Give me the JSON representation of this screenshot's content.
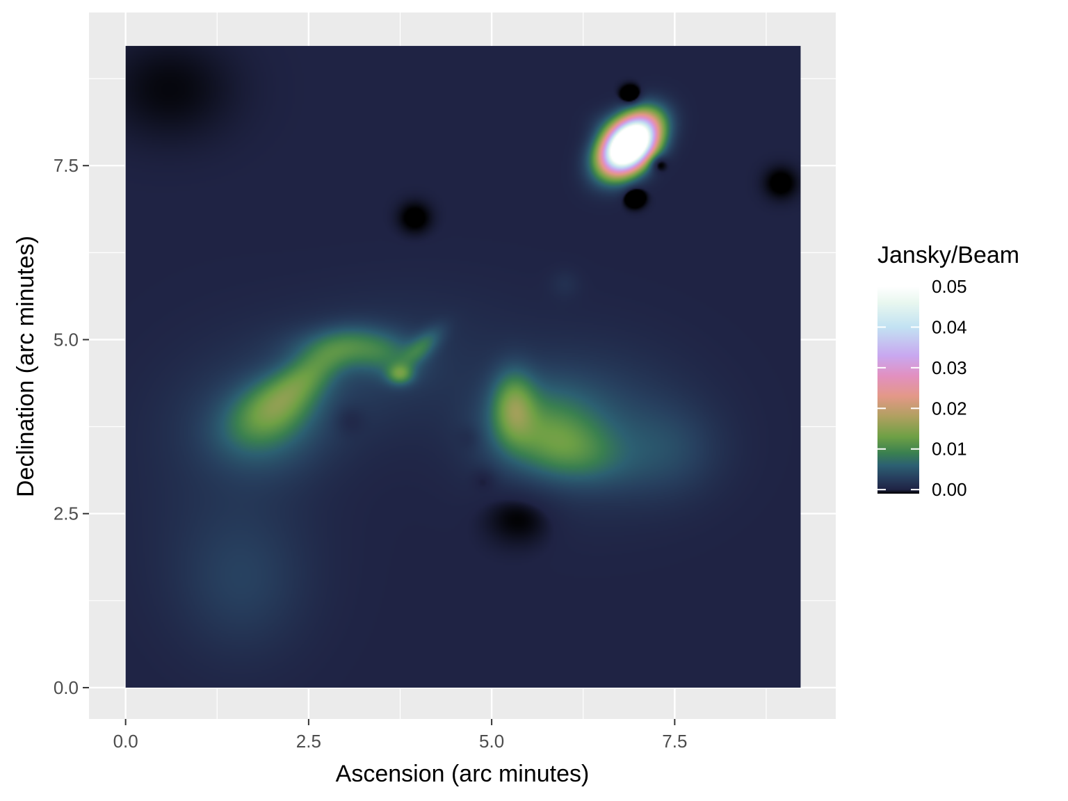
{
  "chart_data": {
    "type": "heatmap",
    "xlabel": "Ascension (arc minutes)",
    "ylabel": "Declination (arc minutes)",
    "xlim": [
      -0.5,
      9.7
    ],
    "ylim": [
      -0.45,
      9.7
    ],
    "data_extent": {
      "x": [
        0,
        9.22
      ],
      "y": [
        0,
        9.22
      ]
    },
    "x_ticks": [
      {
        "value": 0,
        "label": "0.0"
      },
      {
        "value": 2.5,
        "label": "2.5"
      },
      {
        "value": 5,
        "label": "5.0"
      },
      {
        "value": 7.5,
        "label": "7.5"
      }
    ],
    "y_ticks": [
      {
        "value": 0,
        "label": "0.0"
      },
      {
        "value": 2.5,
        "label": "2.5"
      },
      {
        "value": 5,
        "label": "5.0"
      },
      {
        "value": 7.5,
        "label": "7.5"
      }
    ],
    "grid": true,
    "panel_background": "#ebebeb",
    "gridline_color": "#ffffff",
    "background_level_color": "#1f2344",
    "legend": {
      "title": "Jansky/Beam",
      "placement": "right",
      "range": [
        -0.001,
        0.05
      ],
      "ticks": [
        {
          "value": 0.05,
          "label": "0.05"
        },
        {
          "value": 0.04,
          "label": "0.04"
        },
        {
          "value": 0.03,
          "label": "0.03"
        },
        {
          "value": 0.02,
          "label": "0.02"
        },
        {
          "value": 0.01,
          "label": "0.01"
        },
        {
          "value": 0.0,
          "label": "0.00"
        }
      ],
      "colormap": [
        {
          "value": -0.001,
          "color": "#000000"
        },
        {
          "value": 0.0,
          "color": "#1f2344"
        },
        {
          "value": 0.003,
          "color": "#27405f"
        },
        {
          "value": 0.006,
          "color": "#2c6072"
        },
        {
          "value": 0.009,
          "color": "#3a8050"
        },
        {
          "value": 0.013,
          "color": "#6ea045"
        },
        {
          "value": 0.018,
          "color": "#b0a060"
        },
        {
          "value": 0.023,
          "color": "#e39888"
        },
        {
          "value": 0.028,
          "color": "#e290c0"
        },
        {
          "value": 0.033,
          "color": "#c8a8f0"
        },
        {
          "value": 0.04,
          "color": "#c2e2f2"
        },
        {
          "value": 0.046,
          "color": "#e8f7ef"
        },
        {
          "value": 0.05,
          "color": "#ffffff"
        }
      ]
    },
    "features": [
      {
        "x": 1.6,
        "y": 1.5,
        "amplitude": 0.0024,
        "sx": 0.6,
        "sy": 0.7,
        "angle": 0
      },
      {
        "x": 1.4,
        "y": 2.8,
        "amplitude": 0.0012,
        "sx": 0.9,
        "sy": 1.3,
        "angle": 0
      },
      {
        "x": 1.9,
        "y": 3.7,
        "amplitude": 0.0045,
        "sx": 0.55,
        "sy": 0.45,
        "angle": 0
      },
      {
        "x": 2.05,
        "y": 4.05,
        "amplitude": 0.0085,
        "sx": 0.45,
        "sy": 0.28,
        "angle": 35
      },
      {
        "x": 2.55,
        "y": 4.55,
        "amplitude": 0.0065,
        "sx": 0.42,
        "sy": 0.2,
        "angle": 40
      },
      {
        "x": 3.05,
        "y": 4.9,
        "amplitude": 0.0055,
        "sx": 0.5,
        "sy": 0.2,
        "angle": 0
      },
      {
        "x": 3.55,
        "y": 4.75,
        "amplitude": 0.004,
        "sx": 0.35,
        "sy": 0.22,
        "angle": -20
      },
      {
        "x": 3.75,
        "y": 4.5,
        "amplitude": 0.0085,
        "sx": 0.12,
        "sy": 0.1,
        "angle": 0
      },
      {
        "x": 4.05,
        "y": 4.9,
        "amplitude": 0.006,
        "sx": 0.25,
        "sy": 0.11,
        "angle": 45
      },
      {
        "x": 3.0,
        "y": 4.5,
        "amplitude": 0.0025,
        "sx": 1.3,
        "sy": 0.65,
        "angle": 15
      },
      {
        "x": 5.3,
        "y": 4.05,
        "amplitude": 0.01,
        "sx": 0.2,
        "sy": 0.35,
        "angle": 0
      },
      {
        "x": 5.7,
        "y": 3.75,
        "amplitude": 0.0065,
        "sx": 0.55,
        "sy": 0.45,
        "angle": 0
      },
      {
        "x": 6.1,
        "y": 3.4,
        "amplitude": 0.0055,
        "sx": 0.5,
        "sy": 0.3,
        "angle": -15
      },
      {
        "x": 6.3,
        "y": 3.75,
        "amplitude": 0.0035,
        "sx": 0.95,
        "sy": 0.75,
        "angle": 0
      },
      {
        "x": 7.4,
        "y": 3.4,
        "amplitude": 0.0028,
        "sx": 0.5,
        "sy": 0.45,
        "angle": 0
      },
      {
        "x": 6.0,
        "y": 5.8,
        "amplitude": 0.0012,
        "sx": 0.15,
        "sy": 0.15,
        "angle": 0
      },
      {
        "x": 6.88,
        "y": 7.8,
        "amplitude": 0.085,
        "sx": 0.3,
        "sy": 0.2,
        "angle": 50
      },
      {
        "x": 6.9,
        "y": 8.5,
        "amplitude": -0.0055,
        "sx": 0.09,
        "sy": 0.09,
        "angle": 0
      },
      {
        "x": 7.25,
        "y": 7.55,
        "amplitude": -0.0055,
        "sx": 0.09,
        "sy": 0.09,
        "angle": 0
      },
      {
        "x": 6.95,
        "y": 7.05,
        "amplitude": -0.005,
        "sx": 0.09,
        "sy": 0.09,
        "angle": 0
      },
      {
        "x": 6.55,
        "y": 8.1,
        "amplitude": 0.0015,
        "sx": 0.18,
        "sy": 0.15,
        "angle": 0
      },
      {
        "x": 7.2,
        "y": 8.2,
        "amplitude": 0.0015,
        "sx": 0.18,
        "sy": 0.15,
        "angle": 0
      },
      {
        "x": 3.95,
        "y": 6.75,
        "amplitude": -0.0015,
        "sx": 0.15,
        "sy": 0.15,
        "angle": 0
      },
      {
        "x": 8.95,
        "y": 7.25,
        "amplitude": -0.0015,
        "sx": 0.15,
        "sy": 0.15,
        "angle": 0
      },
      {
        "x": 3.05,
        "y": 3.85,
        "amplitude": -0.0015,
        "sx": 0.15,
        "sy": 0.15,
        "angle": 0
      },
      {
        "x": 4.7,
        "y": 3.6,
        "amplitude": -0.001,
        "sx": 0.12,
        "sy": 0.12,
        "angle": 0
      },
      {
        "x": 4.9,
        "y": 3.0,
        "amplitude": -0.0012,
        "sx": 0.12,
        "sy": 0.12,
        "angle": 0
      },
      {
        "x": 5.4,
        "y": 2.5,
        "amplitude": -0.0015,
        "sx": 0.35,
        "sy": 0.3,
        "angle": 0
      },
      {
        "x": 0.6,
        "y": 8.6,
        "amplitude": -0.0008,
        "sx": 0.6,
        "sy": 0.5,
        "angle": 0
      }
    ]
  }
}
